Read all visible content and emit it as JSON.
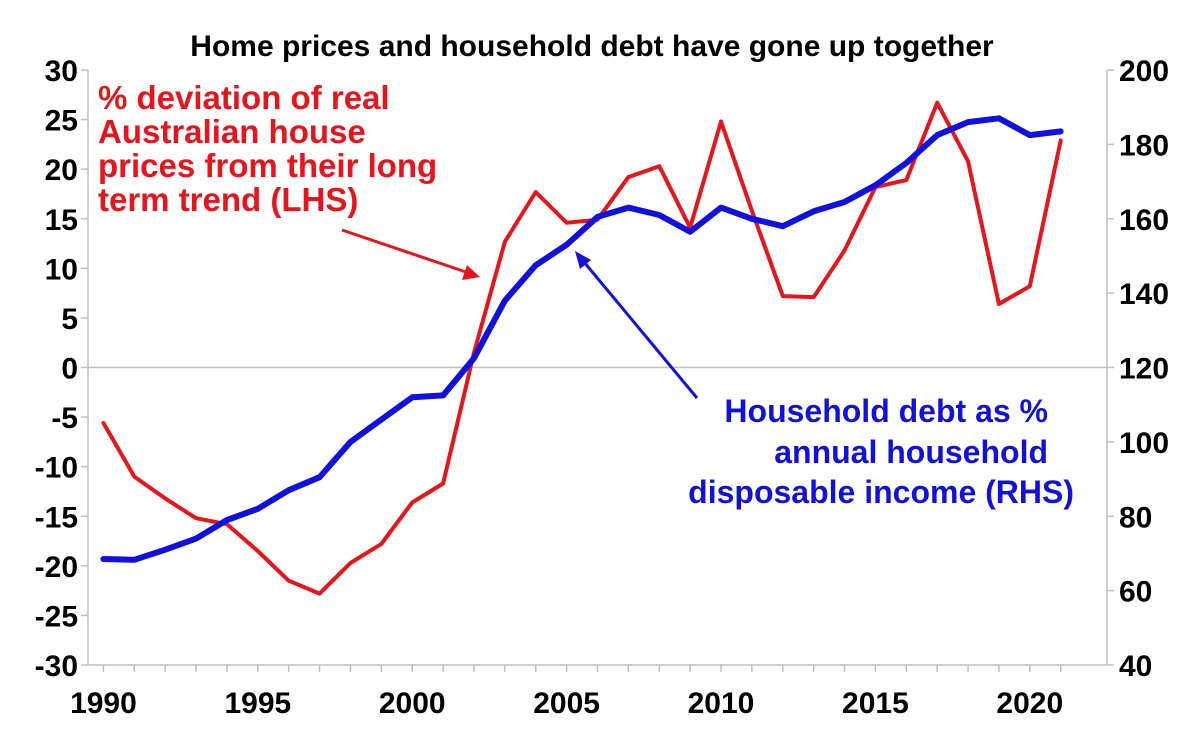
{
  "chart_data": {
    "type": "line",
    "title": "Home prices and household debt have gone up together",
    "x": [
      1990,
      1991,
      1992,
      1993,
      1994,
      1995,
      1996,
      1997,
      1998,
      1999,
      2000,
      2001,
      2002,
      2003,
      2004,
      2005,
      2006,
      2007,
      2008,
      2009,
      2010,
      2011,
      2012,
      2013,
      2014,
      2015,
      2016,
      2017,
      2018,
      2019,
      2020,
      2021
    ],
    "xlim": [
      1989.5,
      2022.5
    ],
    "x_ticks": [
      1990,
      1995,
      2000,
      2005,
      2010,
      2015,
      2020
    ],
    "ylim_left": [
      -30,
      30
    ],
    "y_ticks_left": [
      30,
      25,
      20,
      15,
      10,
      5,
      0,
      -5,
      -10,
      -15,
      -20,
      -25,
      -30
    ],
    "ylim_right": [
      40,
      200
    ],
    "y_ticks_right": [
      200,
      180,
      160,
      140,
      120,
      100,
      80,
      60,
      40
    ],
    "grid": false,
    "series": [
      {
        "id": "house_prices",
        "axis": "left",
        "color": "#e8141b",
        "values": [
          -5.6,
          -11,
          -13.2,
          -15.2,
          -15.8,
          -18.5,
          -21.5,
          -22.8,
          -19.7,
          -17.8,
          -13.6,
          -11.7,
          1.5,
          12.7,
          17.7,
          14.6,
          14.9,
          19.2,
          20.3,
          14.1,
          24.8,
          15.8,
          7.2,
          7.1,
          11.8,
          18.2,
          18.9,
          26.7,
          20.8,
          6.4,
          8.2,
          22.9
        ]
      },
      {
        "id": "household_debt",
        "axis": "right",
        "color": "#1010e0",
        "values": [
          68.5,
          68.3,
          71,
          74,
          79,
          82,
          87,
          90.5,
          100,
          106,
          112,
          112.5,
          122.5,
          138,
          147.5,
          153,
          160.5,
          163,
          161,
          156.5,
          163,
          160,
          158,
          162,
          164.5,
          169,
          175,
          182.5,
          186,
          187,
          182.5,
          183.5
        ]
      }
    ],
    "annotations": [
      {
        "series": "house_prices",
        "lines": [
          "% deviation of real",
          "Australian house",
          "prices from their long",
          "term trend (LHS)"
        ]
      },
      {
        "series": "household_debt",
        "lines": [
          "Household debt as %",
          "annual household",
          "disposable income (RHS)"
        ]
      }
    ]
  }
}
